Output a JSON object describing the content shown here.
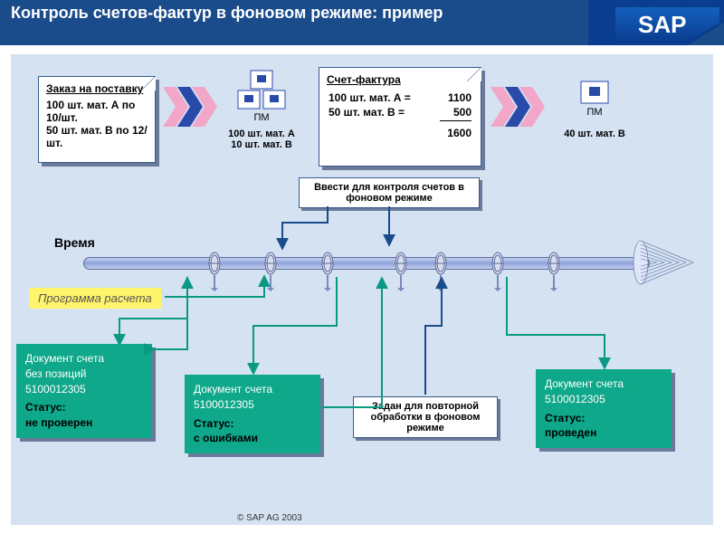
{
  "colors": {
    "header_bg": "#1a4c8c",
    "main_bg": "#d4e2f2",
    "card_bg": "#ffffff",
    "card_border": "#3a5a8a",
    "shadow": "#6a7a9a",
    "status_bg": "#0fa88a",
    "prog_bg": "#fff46a",
    "axis_top": "#c3d0f0",
    "axis_mid": "#8fa3d8",
    "arrow1": "#0a9a84",
    "arrow2": "#0a9a84",
    "chevron_pink": "#f2a6c8",
    "chevron_blue": "#2a4aaa"
  },
  "header": {
    "title": "Контроль счетов-фактур в фоновом режиме: пример",
    "logo_text": "SAP"
  },
  "po_card": {
    "title": "Заказ на поставку",
    "lines": [
      "100 шт. мат. А по 10/шт.",
      "50 шт. мат. B по 12/шт."
    ]
  },
  "pm1": {
    "label": "ПМ",
    "line1": "100 шт. мат. А",
    "line2": "10 шт. мат. B"
  },
  "pm2": {
    "label": "ПМ",
    "line1": "40 шт. мат. B"
  },
  "invoice_card": {
    "title": "Счет-фактура",
    "rows": [
      {
        "text": "100 шт. мат. А =",
        "val": "1100"
      },
      {
        "text": "50 шт. мат. B =",
        "val": "500"
      }
    ],
    "total": "1600"
  },
  "note1": "Ввести для контроля счетов в фоновом режиме",
  "note2": "Задан для повторной обработки в фоновом режиме",
  "time_label": "Время",
  "prog_label": "Программа расчета",
  "timeline": {
    "markers_pct": [
      22,
      32,
      42,
      55,
      62,
      72,
      82
    ]
  },
  "status1": {
    "l1": "Документ счета",
    "l2": "без позиций",
    "l3": "5100012305",
    "st_label": "Статус:",
    "st_val": "не проверен"
  },
  "status2": {
    "l1": "Документ счета",
    "l2": "5100012305",
    "st_label": "Статус:",
    "st_val": "с ошибками"
  },
  "status3": {
    "l1": "Документ счета",
    "l2": "5100012305",
    "st_label": "Статус:",
    "st_val": "проведен"
  },
  "copyright": "© SAP AG 2003"
}
